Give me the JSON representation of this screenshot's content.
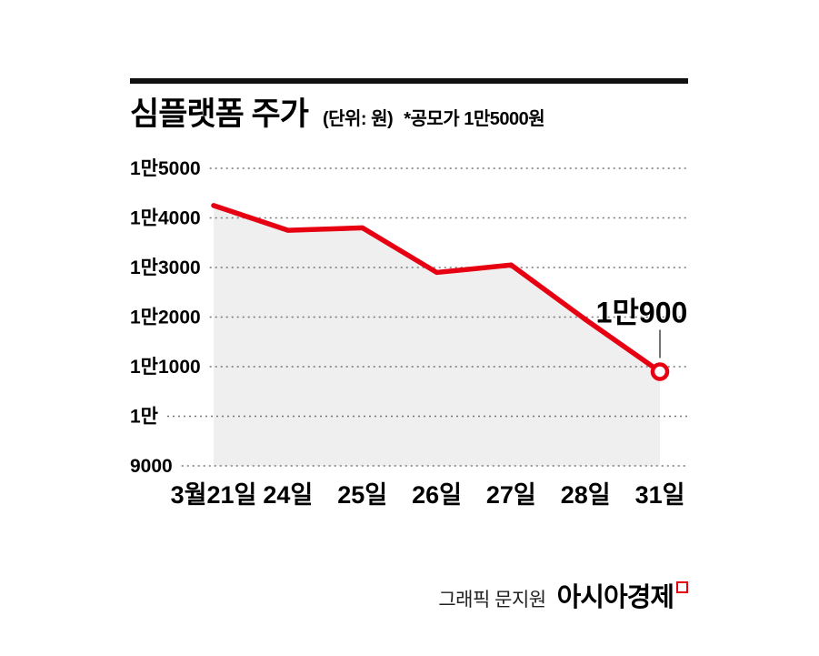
{
  "header": {
    "title": "심플랫폼 주가",
    "unit_label": "(단위: 원)",
    "note": "*공모가 1만5000원"
  },
  "chart_data": {
    "type": "line",
    "title": "심플랫폼 주가",
    "ylabel": "원",
    "categories": [
      "3월21일",
      "24일",
      "25일",
      "26일",
      "27일",
      "28일",
      "31일"
    ],
    "values": [
      14250,
      13750,
      13800,
      12900,
      13050,
      11950,
      10900
    ],
    "ylim": [
      9000,
      15000
    ],
    "yticks": [
      {
        "value": 15000,
        "label": "1만5000"
      },
      {
        "value": 14000,
        "label": "1만4000"
      },
      {
        "value": 13000,
        "label": "1만3000"
      },
      {
        "value": 12000,
        "label": "1만2000"
      },
      {
        "value": 11000,
        "label": "1만1000"
      },
      {
        "value": 10000,
        "label": "1만"
      },
      {
        "value": 9000,
        "label": "9000"
      }
    ],
    "grid": "dotted-horizontal",
    "legend": "none",
    "line_color": "#e60012",
    "area_color": "#efefef",
    "marker": "open-circle-last-point",
    "annotation": {
      "text": "1만900",
      "category": "31일",
      "value": 10900
    },
    "ipo_price_note": "*공모가 1만5000원"
  },
  "footer": {
    "credit": "그래픽 문지원",
    "brand": "아시아경제"
  }
}
